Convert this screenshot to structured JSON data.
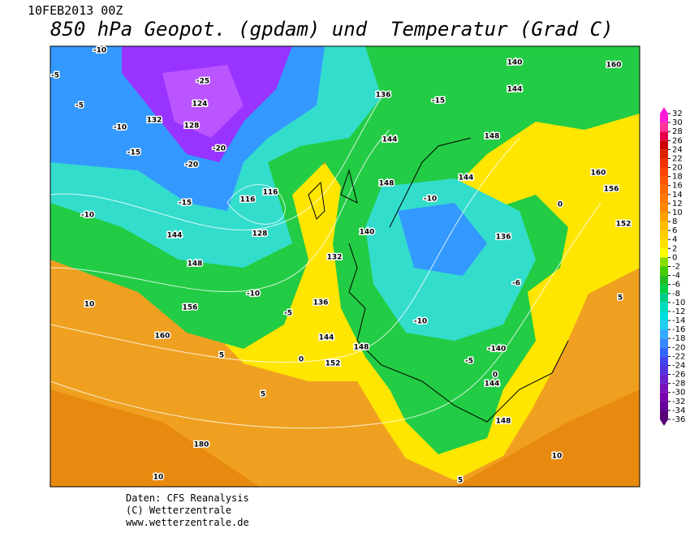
{
  "header": {
    "date": "10FEB2013 00Z",
    "title": "850 hPa Geopot. (gpdam) und  Temperatur (Grad C)"
  },
  "map": {
    "labels": [
      -10,
      -5,
      -5,
      132,
      -10,
      -15,
      -25,
      124,
      128,
      -20,
      -20,
      116,
      116,
      128,
      144,
      -15,
      148,
      132,
      136,
      -10,
      -5,
      156,
      160,
      144,
      148,
      152,
      144,
      148,
      144,
      -10,
      140,
      136,
      -10,
      -5,
      144,
      148,
      -140,
      160,
      156,
      152,
      140,
      144,
      148,
      160,
      -15,
      136,
      180,
      10,
      10,
      5,
      5,
      0,
      0,
      -6,
      -10,
      0,
      5,
      10,
      5
    ]
  },
  "colorbar": {
    "ticks": [
      32,
      30,
      28,
      26,
      24,
      22,
      20,
      18,
      16,
      14,
      12,
      10,
      8,
      6,
      4,
      2,
      0,
      -2,
      -4,
      -6,
      -8,
      -10,
      -12,
      -14,
      -16,
      -18,
      -20,
      -22,
      -24,
      -26,
      -28,
      -30,
      -32,
      -34,
      -36
    ],
    "colors": [
      "#ff1ad9",
      "#ff3399",
      "#e6004c",
      "#cc0000",
      "#dd2200",
      "#ee3300",
      "#ff4400",
      "#ff5500",
      "#ff6600",
      "#ff7700",
      "#ff8800",
      "#ffa000",
      "#ffbb00",
      "#ffcc00",
      "#ffe000",
      "#ffff00",
      "#88dd00",
      "#44cc00",
      "#22bb22",
      "#00cc44",
      "#00cc88",
      "#00ddbb",
      "#00dddd",
      "#22ccee",
      "#33aaff",
      "#3388ff",
      "#3366ff",
      "#4444ee",
      "#5533dd",
      "#6622cc",
      "#7711bb",
      "#7700aa",
      "#660099",
      "#550077"
    ]
  },
  "footer": {
    "lines": [
      "Daten: CFS Reanalysis",
      "(C) Wetterzentrale",
      "www.wetterzentrale.de"
    ]
  }
}
